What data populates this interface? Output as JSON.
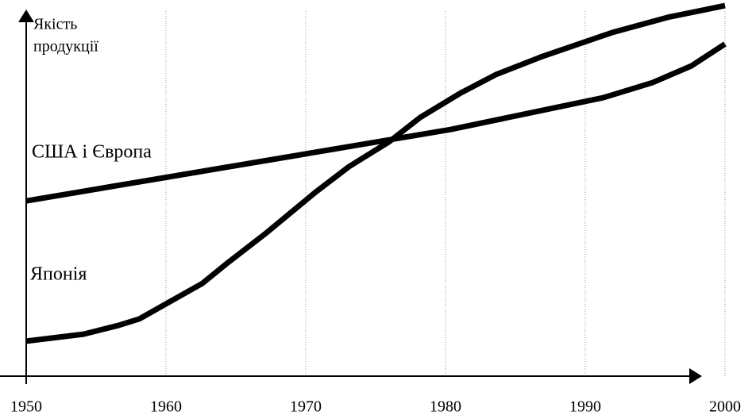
{
  "chart_data": {
    "type": "line",
    "y_label": [
      "Якість",
      "продукції"
    ],
    "xlim": [
      1950,
      2000
    ],
    "xticks": [
      1950,
      1960,
      1970,
      1980,
      1990,
      2000
    ],
    "ylim": [
      0,
      100
    ],
    "grid": true,
    "series": [
      {
        "name": "США і Європа",
        "color": "#000000",
        "x": [
          1950,
          1980.4,
          1991.3,
          1994.8,
          1997.6,
          2000
        ],
        "values": [
          48,
          67.6,
          76.3,
          80.4,
          85,
          91
        ]
      },
      {
        "name": "Японія",
        "color": "#000000",
        "x": [
          1950,
          1954.1,
          1956.6,
          1958.1,
          1962.6,
          1964.3,
          1967.2,
          1970.7,
          1973.1,
          1976,
          1978.2,
          1981.1,
          1983.6,
          1986.8,
          1991.9,
          1995.9,
          2000
        ],
        "values": [
          9.6,
          11.5,
          13.9,
          15.7,
          25.4,
          30.7,
          39.3,
          50.4,
          57.4,
          64.3,
          70.9,
          77.6,
          82.6,
          87.4,
          94.1,
          98.3,
          101.5
        ]
      }
    ]
  }
}
